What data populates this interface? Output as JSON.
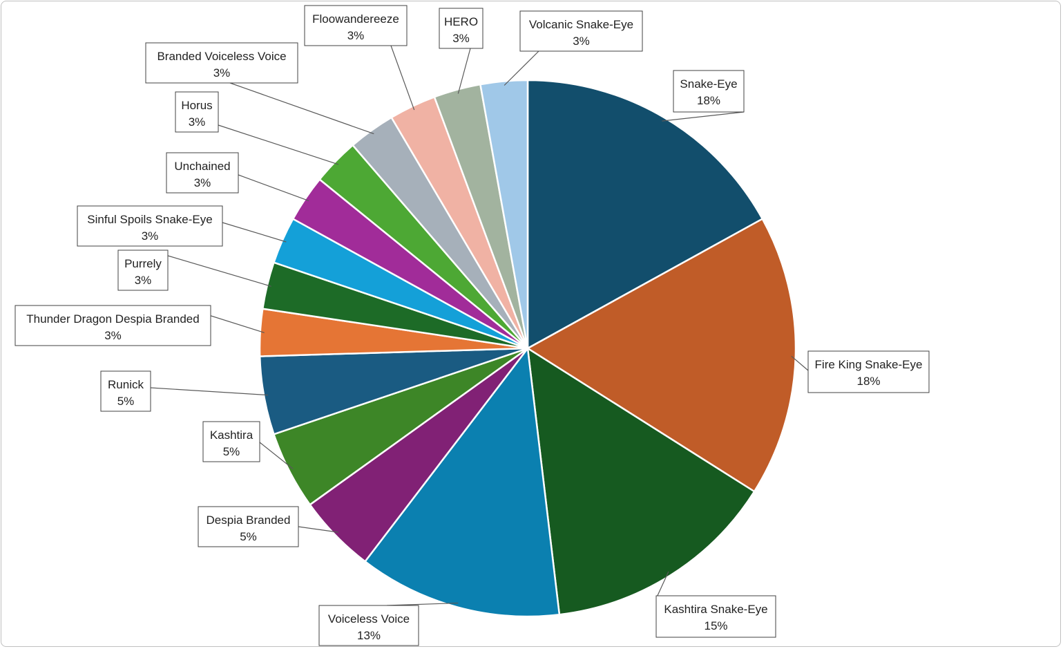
{
  "chart_data": {
    "type": "pie",
    "title": "",
    "slices": [
      {
        "name": "Snake-Eye",
        "value": 18,
        "label": "18%",
        "color": "#124e6c"
      },
      {
        "name": "Fire King Snake-Eye",
        "value": 18,
        "label": "18%",
        "color": "#c05c28"
      },
      {
        "name": "Kashtira Snake-Eye",
        "value": 15,
        "label": "15%",
        "color": "#165a20"
      },
      {
        "name": "Voiceless Voice",
        "value": 13,
        "label": "13%",
        "color": "#0b80b0"
      },
      {
        "name": "Despia Branded",
        "value": 5,
        "label": "5%",
        "color": "#812175"
      },
      {
        "name": "Kashtira",
        "value": 5,
        "label": "5%",
        "color": "#3d8627"
      },
      {
        "name": "Runick",
        "value": 5,
        "label": "5%",
        "color": "#1a5b82"
      },
      {
        "name": "Thunder Dragon Despia Branded",
        "value": 3,
        "label": "3%",
        "color": "#e57535"
      },
      {
        "name": "Purrely",
        "value": 3,
        "label": "3%",
        "color": "#1d6b27"
      },
      {
        "name": "Sinful Spoils Snake-Eye",
        "value": 3,
        "label": "3%",
        "color": "#14a0d8"
      },
      {
        "name": "Unchained",
        "value": 3,
        "label": "3%",
        "color": "#a12c99"
      },
      {
        "name": "Horus",
        "value": 3,
        "label": "3%",
        "color": "#4da834"
      },
      {
        "name": "Branded Voiceless Voice",
        "value": 3,
        "label": "3%",
        "color": "#a6b0ba"
      },
      {
        "name": "Floowandereeze",
        "value": 3,
        "label": "3%",
        "color": "#f0b2a4"
      },
      {
        "name": "HERO",
        "value": 3,
        "label": "3%",
        "color": "#a2b39f"
      },
      {
        "name": "Volcanic Snake-Eye",
        "value": 3,
        "label": "3%",
        "color": "#a0c8e8"
      }
    ]
  }
}
